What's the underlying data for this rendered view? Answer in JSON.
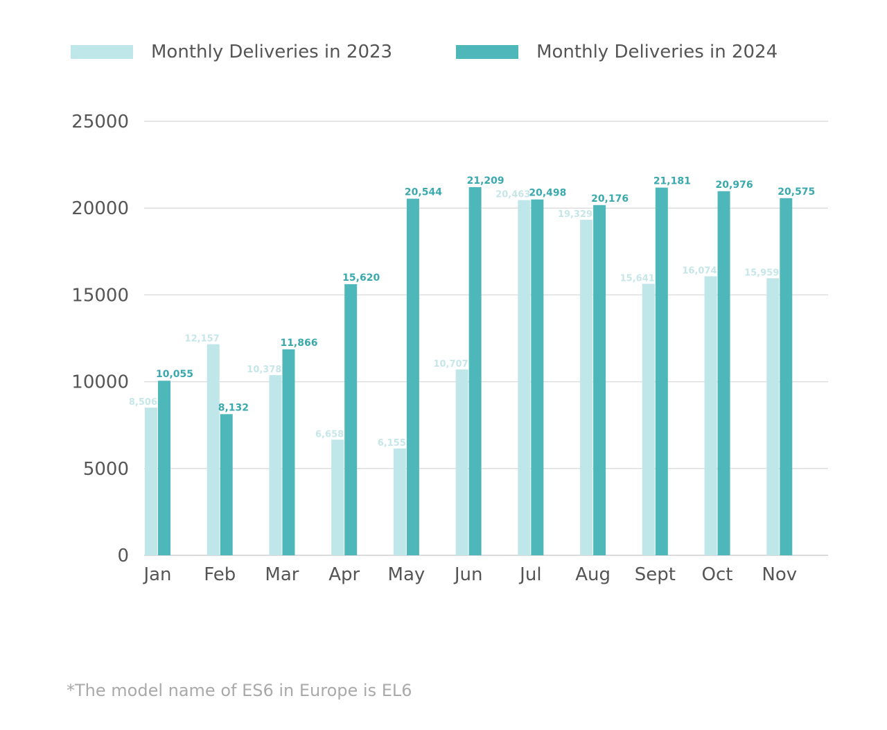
{
  "colors": {
    "series_2023": "#bfe6e8",
    "series_2024": "#4db7ba",
    "label_2023": "#c6e6e8",
    "label_2024": "#3aa9ad",
    "grid": "#dedede",
    "axis_text": "#555555"
  },
  "footnote": "*The model name of ES6 in Europe is EL6",
  "chart_data": {
    "type": "bar",
    "categories": [
      "Jan",
      "Feb",
      "Mar",
      "Apr",
      "May",
      "Jun",
      "Jul",
      "Aug",
      "Sept",
      "Oct",
      "Nov"
    ],
    "series": [
      {
        "name": "Monthly Deliveries in 2023",
        "values": [
          8506,
          12157,
          10378,
          6658,
          6155,
          10707,
          20463,
          19329,
          15641,
          16074,
          15959
        ],
        "labels": [
          "8,506",
          "12,157",
          "10,378",
          "6,658",
          "6,155",
          "10,707",
          "20,463",
          "19,329",
          "15,641",
          "16,074",
          "15,959"
        ]
      },
      {
        "name": "Monthly Deliveries in 2024",
        "values": [
          10055,
          8132,
          11866,
          15620,
          20544,
          21209,
          20498,
          20176,
          21181,
          20976,
          20575
        ],
        "labels": [
          "10,055",
          "8,132",
          "11,866",
          "15,620",
          "20,544",
          "21,209",
          "20,498",
          "20,176",
          "21,181",
          "20,976",
          "20,575"
        ]
      }
    ],
    "yticks": [
      "0",
      "5000",
      "10000",
      "15000",
      "20000",
      "25000"
    ],
    "ylim": [
      0,
      25000
    ],
    "grid": true,
    "legend": "top-left"
  }
}
